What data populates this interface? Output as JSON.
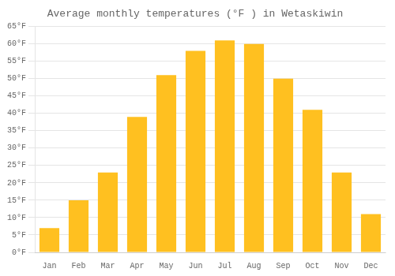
{
  "chart_data": {
    "type": "bar",
    "title": "Average monthly temperatures (°F ) in Wetaskiwin",
    "categories": [
      "Jan",
      "Feb",
      "Mar",
      "Apr",
      "May",
      "Jun",
      "Jul",
      "Aug",
      "Sep",
      "Oct",
      "Nov",
      "Dec"
    ],
    "values": [
      7,
      15,
      23,
      39,
      51,
      58,
      61,
      60,
      50,
      41,
      23,
      11
    ],
    "color": "#FFC020",
    "ylim": [
      0,
      65
    ],
    "yticks": [
      {
        "value": 0,
        "label": "0°F"
      },
      {
        "value": 5,
        "label": "5°F"
      },
      {
        "value": 10,
        "label": "10°F"
      },
      {
        "value": 15,
        "label": "15°F"
      },
      {
        "value": 20,
        "label": "20°F"
      },
      {
        "value": 25,
        "label": "25°F"
      },
      {
        "value": 30,
        "label": "30°F"
      },
      {
        "value": 35,
        "label": "35°F"
      },
      {
        "value": 40,
        "label": "40°F"
      },
      {
        "value": 45,
        "label": "45°F"
      },
      {
        "value": 50,
        "label": "50°F"
      },
      {
        "value": 55,
        "label": "55°F"
      },
      {
        "value": 60,
        "label": "60°F"
      },
      {
        "value": 65,
        "label": "65°F"
      }
    ],
    "grid": true
  }
}
